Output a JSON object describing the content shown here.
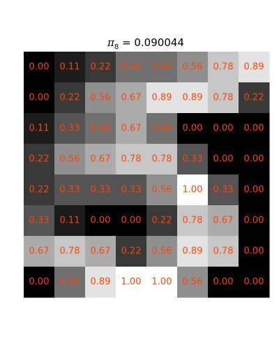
{
  "chart_data": {
    "type": "heatmap",
    "title": {
      "symbol": "π",
      "subscript": "8",
      "equals": " = ",
      "value": "0.090044"
    },
    "colormap": "gray (0 = black, 1 = white)",
    "value_range": [
      0,
      1
    ],
    "label_color": "#ff4500",
    "grid": false,
    "rows": [
      [
        "0.00",
        "0.11",
        "0.22",
        "0.44",
        "0.44",
        "0.56",
        "0.78",
        "0.89"
      ],
      [
        "0.00",
        "0.22",
        "0.56",
        "0.67",
        "0.89",
        "0.89",
        "0.78",
        "0.22"
      ],
      [
        "0.11",
        "0.33",
        "0.44",
        "0.67",
        "0.44",
        "0.00",
        "0.00",
        "0.00"
      ],
      [
        "0.22",
        "0.56",
        "0.67",
        "0.78",
        "0.78",
        "0.33",
        "0.00",
        "0.00"
      ],
      [
        "0.22",
        "0.33",
        "0.33",
        "0.33",
        "0.56",
        "1.00",
        "0.33",
        "0.00"
      ],
      [
        "0.33",
        "0.11",
        "0.00",
        "0.00",
        "0.22",
        "0.78",
        "0.67",
        "0.00"
      ],
      [
        "0.67",
        "0.78",
        "0.67",
        "0.22",
        "0.56",
        "0.89",
        "0.78",
        "0.00"
      ],
      [
        "0.00",
        "0.44",
        "0.89",
        "1.00",
        "1.00",
        "0.56",
        "0.00",
        "0.00"
      ]
    ]
  }
}
